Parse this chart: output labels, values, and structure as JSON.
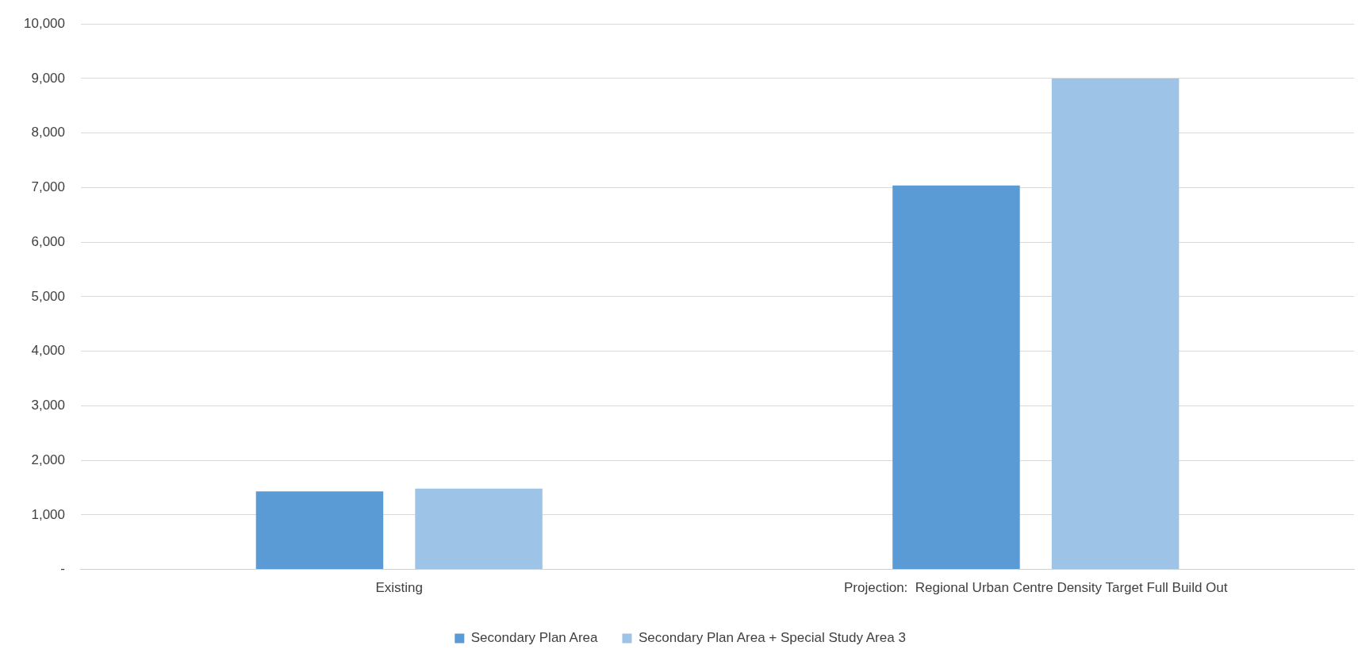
{
  "chart_data": {
    "type": "bar",
    "categories": [
      "Existing",
      "Projection:  Regional Urban Centre Density Target Full Build Out"
    ],
    "series": [
      {
        "name": "Secondary Plan Area",
        "color": "#5b9bd5",
        "values": [
          1430,
          7040
        ]
      },
      {
        "name": "Secondary Plan Area + Special Study Area 3",
        "color": "#9dc3e6",
        "values": [
          1480,
          9000
        ]
      }
    ],
    "ylim": [
      0,
      10000
    ],
    "yticks": [
      {
        "value": 0,
        "label": "-"
      },
      {
        "value": 1000,
        "label": "1,000"
      },
      {
        "value": 2000,
        "label": "2,000"
      },
      {
        "value": 3000,
        "label": "3,000"
      },
      {
        "value": 4000,
        "label": "4,000"
      },
      {
        "value": 5000,
        "label": "5,000"
      },
      {
        "value": 6000,
        "label": "6,000"
      },
      {
        "value": 7000,
        "label": "7,000"
      },
      {
        "value": 8000,
        "label": "8,000"
      },
      {
        "value": 9000,
        "label": "9,000"
      },
      {
        "value": 10000,
        "label": "10,000"
      }
    ],
    "grid": "y",
    "legend": "bottom"
  }
}
